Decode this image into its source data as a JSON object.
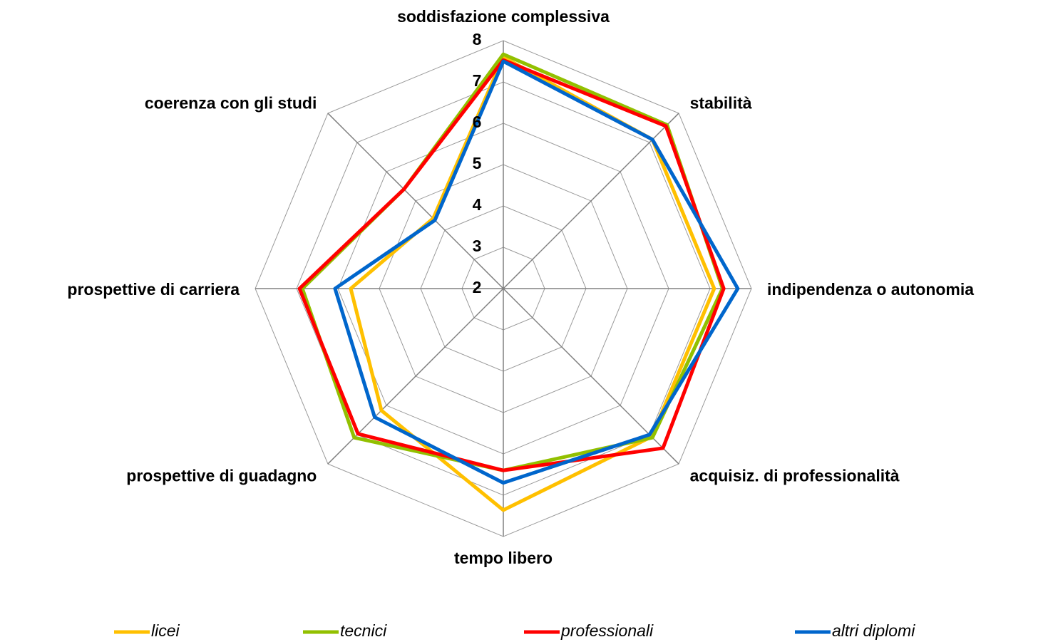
{
  "chart_data": {
    "type": "radar",
    "categories": [
      "soddisfazione complessiva",
      "stabilità",
      "indipendenza o autonomia",
      "acquisiz. di professionalità",
      "tempo libero",
      "prospettive di guadagno",
      "prospettive di carriera",
      "coerenza con gli studi"
    ],
    "series": [
      {
        "name": "licei",
        "color": "#ffc000",
        "values": [
          7.6,
          7.1,
          7.1,
          7.07,
          7.36,
          6.17,
          5.69,
          4.4
        ]
      },
      {
        "name": "tecnici",
        "color": "#92c000",
        "values": [
          7.67,
          7.6,
          7.3,
          7.1,
          6.4,
          7.1,
          6.86,
          5.4
        ]
      },
      {
        "name": "professionali",
        "color": "#ff0000",
        "values": [
          7.53,
          7.56,
          7.33,
          7.46,
          6.4,
          6.97,
          6.93,
          5.4
        ]
      },
      {
        "name": "altri diplomi",
        "color": "#0066cc",
        "values": [
          7.5,
          7.1,
          7.67,
          7.0,
          6.7,
          6.4,
          6.07,
          4.34
        ]
      }
    ],
    "rlim": [
      2,
      8
    ],
    "rticks": [
      2,
      3,
      4,
      5,
      6,
      7,
      8
    ],
    "grid": true,
    "legend": "bottom"
  }
}
